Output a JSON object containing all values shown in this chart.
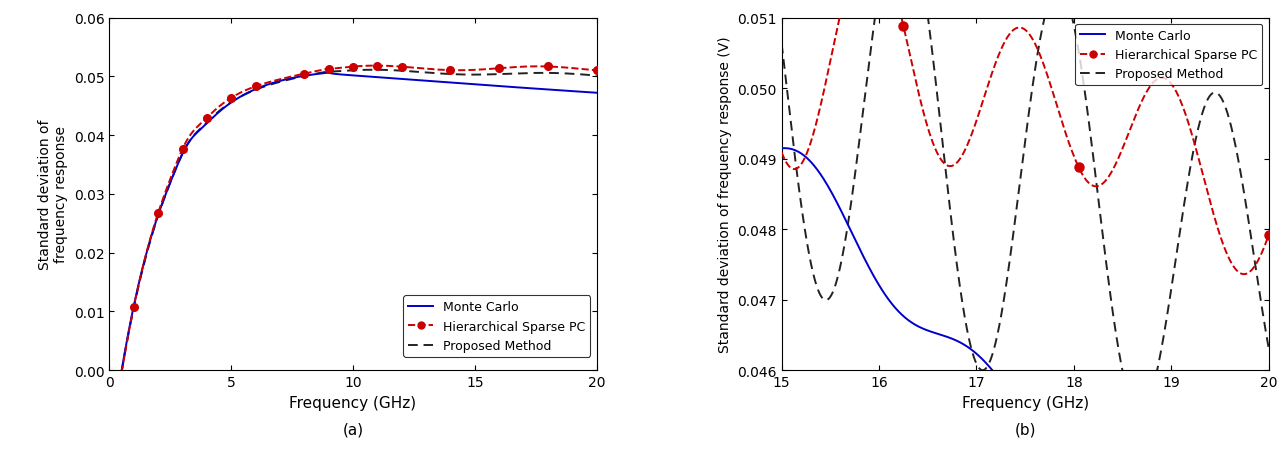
{
  "left": {
    "xlim": [
      0,
      20
    ],
    "ylim": [
      0,
      0.06
    ],
    "xticks": [
      0,
      5,
      10,
      15,
      20
    ],
    "yticks": [
      0,
      0.01,
      0.02,
      0.03,
      0.04,
      0.05,
      0.06
    ],
    "xlabel": "Frequency (GHz)",
    "ylabel": "Standard deviation of\nfrequency response",
    "label_a": "(a)",
    "mc_color": "#0000cc",
    "hspc_color": "#cc0000",
    "pm_color": "#222222"
  },
  "right": {
    "xlim": [
      15,
      20
    ],
    "ylim": [
      0.046,
      0.051
    ],
    "xticks": [
      15,
      16,
      17,
      18,
      19,
      20
    ],
    "yticks": [
      0.046,
      0.047,
      0.048,
      0.049,
      0.05,
      0.051
    ],
    "xlabel": "Frequency (GHz)",
    "ylabel": "Standard deviation of frequency response (V)",
    "label_b": "(b)",
    "mc_color": "#0000cc",
    "hspc_color": "#cc0000",
    "pm_color": "#222222"
  },
  "legend_labels": [
    "Monte Carlo",
    "Hierarchical Sparse PC",
    "Proposed Method"
  ]
}
